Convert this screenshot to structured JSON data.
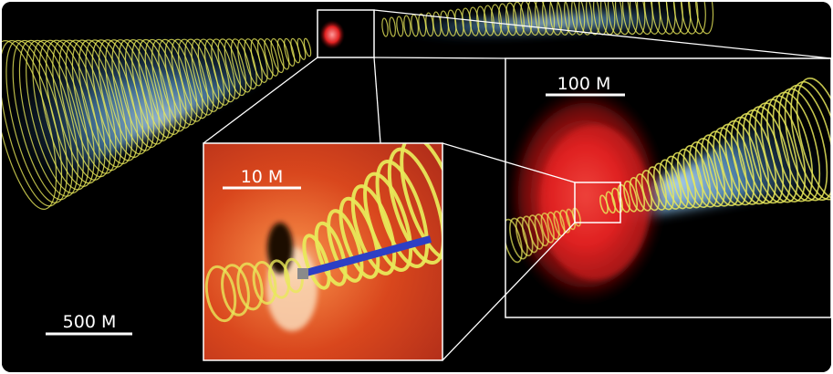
{
  "scene": {
    "background_color": "#000000",
    "jet_color": "#5b9fd6",
    "field_line_color": "#e8e85a",
    "disk_color": "#e02020",
    "inner_disk_color": "#e2521f",
    "inner_jet_color": "#2d3fc4"
  },
  "scale_bars": {
    "large": "500 M",
    "medium": "100 M",
    "small": "10 M"
  }
}
